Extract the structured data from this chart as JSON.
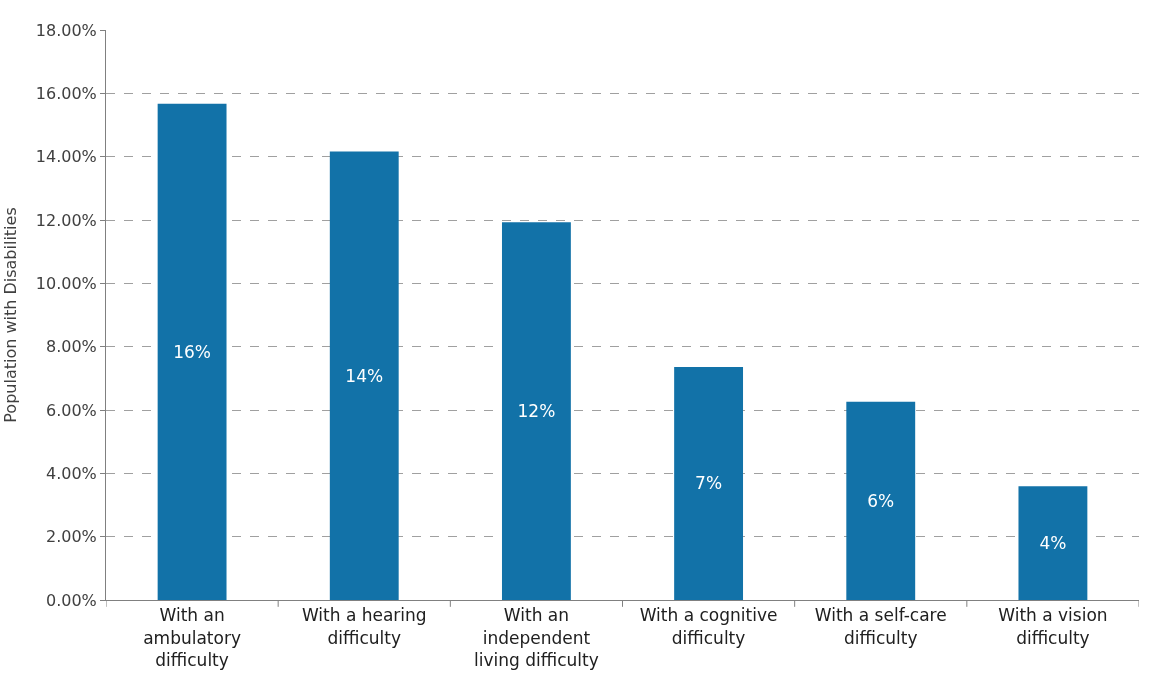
{
  "chart_data": {
    "type": "bar",
    "ylabel": "Population with Disabilities",
    "categories": [
      "With an ambulatory difficulty",
      "With a hearing difficulty",
      "With an independent living difficulty",
      "With a cognitive difficulty",
      "With a self-care difficulty",
      "With a vision difficulty"
    ],
    "values": [
      15.67,
      14.16,
      11.93,
      7.36,
      6.26,
      3.59
    ],
    "value_labels": [
      "16%",
      "14%",
      "12%",
      "7%",
      "6%",
      "4%"
    ],
    "color": "#1272a8",
    "ylim": [
      0,
      18
    ],
    "yticks": [
      {
        "value": 0,
        "label": "0.00%"
      },
      {
        "value": 2,
        "label": "2.00%"
      },
      {
        "value": 4,
        "label": "4.00%"
      },
      {
        "value": 6,
        "label": "6.00%"
      },
      {
        "value": 8,
        "label": "8.00%"
      },
      {
        "value": 10,
        "label": "10.00%"
      },
      {
        "value": 12,
        "label": "12.00%"
      },
      {
        "value": 14,
        "label": "14.00%"
      },
      {
        "value": 16,
        "label": "16.00%"
      },
      {
        "value": 18,
        "label": "18.00%"
      }
    ],
    "grid": "y"
  }
}
